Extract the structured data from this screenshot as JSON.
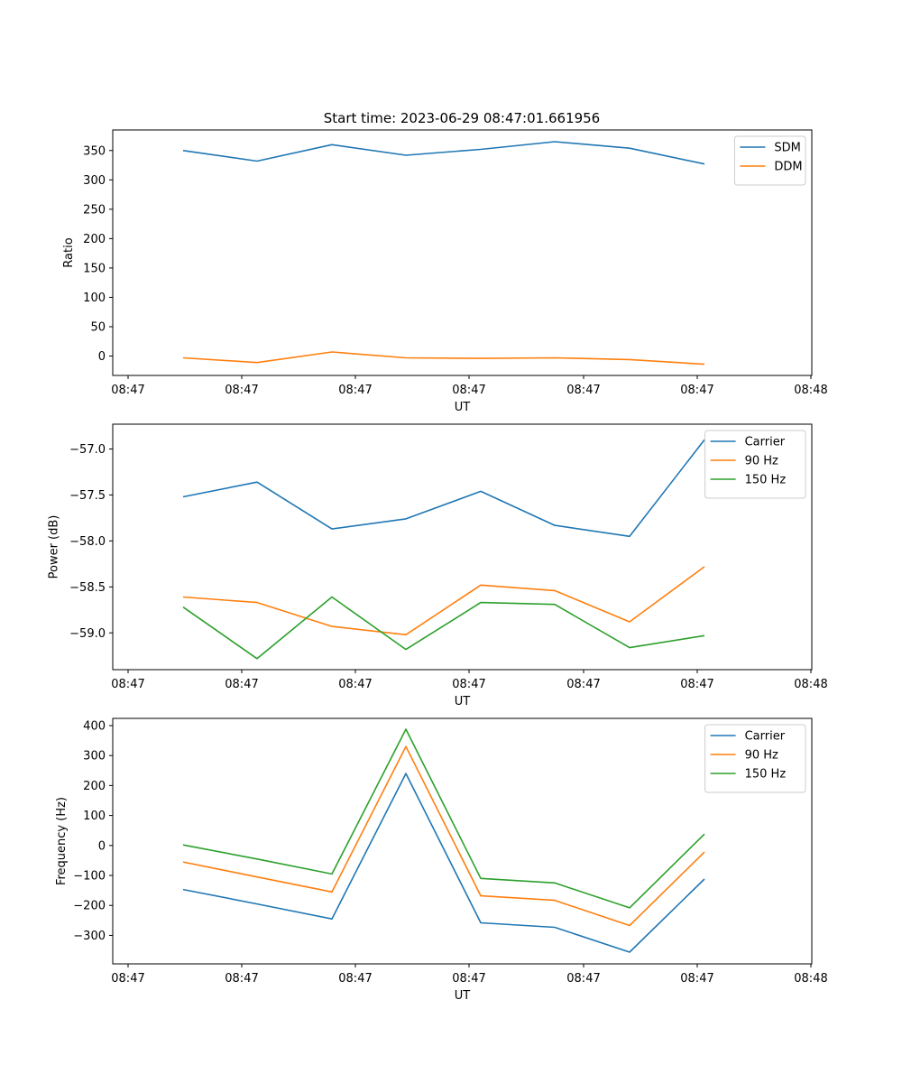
{
  "colors": {
    "blue": "#1f77b4",
    "orange": "#ff7f0e",
    "green": "#2ca02c"
  },
  "chart_data": [
    {
      "type": "line",
      "title": "Start time: 2023-06-29 08:47:01.661956",
      "xlabel": "UT",
      "ylabel": "Ratio",
      "x_tick_labels": [
        "08:47",
        "08:47",
        "08:47",
        "08:47",
        "08:47",
        "08:47",
        "08:48"
      ],
      "y_ticks": [
        0,
        50,
        100,
        150,
        200,
        250,
        300,
        350
      ],
      "y_tick_labels": [
        "0",
        "50",
        "100",
        "150",
        "200",
        "250",
        "300",
        "350"
      ],
      "ylim": [
        -33,
        385
      ],
      "grid": false,
      "legend_position": "top-right",
      "series": [
        {
          "name": "SDM",
          "color": "#1f77b4",
          "values": [
            350,
            332,
            360,
            342,
            352,
            365,
            354,
            327
          ]
        },
        {
          "name": "DDM",
          "color": "#ff7f0e",
          "values": [
            -3,
            -11,
            7,
            -3,
            -4,
            -3,
            -6,
            -14
          ]
        }
      ]
    },
    {
      "type": "line",
      "title": "",
      "xlabel": "UT",
      "ylabel": "Power (dB)",
      "x_tick_labels": [
        "08:47",
        "08:47",
        "08:47",
        "08:47",
        "08:47",
        "08:47",
        "08:48"
      ],
      "y_ticks": [
        -59.0,
        -58.5,
        -58.0,
        -57.5,
        -57.0
      ],
      "y_tick_labels": [
        "−59.0",
        "−58.5",
        "−58.0",
        "−57.5",
        "−57.0"
      ],
      "ylim": [
        -59.4,
        -56.73
      ],
      "grid": false,
      "legend_position": "top-right",
      "series": [
        {
          "name": "Carrier",
          "color": "#1f77b4",
          "values": [
            -57.52,
            -57.36,
            -57.87,
            -57.76,
            -57.46,
            -57.83,
            -57.95,
            -56.9
          ]
        },
        {
          "name": "90 Hz",
          "color": "#ff7f0e",
          "values": [
            -58.61,
            -58.67,
            -58.93,
            -59.02,
            -58.48,
            -58.54,
            -58.88,
            -58.28
          ]
        },
        {
          "name": "150 Hz",
          "color": "#2ca02c",
          "values": [
            -58.72,
            -59.28,
            -58.61,
            -59.18,
            -58.67,
            -58.69,
            -59.16,
            -59.03
          ]
        }
      ]
    },
    {
      "type": "line",
      "title": "",
      "xlabel": "UT",
      "ylabel": "Frequency (Hz)",
      "x_tick_labels": [
        "08:47",
        "08:47",
        "08:47",
        "08:47",
        "08:47",
        "08:47",
        "08:48"
      ],
      "y_ticks": [
        -300,
        -200,
        -100,
        0,
        100,
        200,
        300,
        400
      ],
      "y_tick_labels": [
        "−300",
        "−200",
        "−100",
        "0",
        "100",
        "200",
        "300",
        "400"
      ],
      "ylim": [
        -395,
        424
      ],
      "grid": false,
      "legend_position": "top-right",
      "series": [
        {
          "name": "Carrier",
          "color": "#1f77b4",
          "values": [
            -147,
            -195,
            -245,
            240,
            -258,
            -273,
            -356,
            -112
          ]
        },
        {
          "name": "90 Hz",
          "color": "#ff7f0e",
          "values": [
            -55,
            -105,
            -155,
            330,
            -168,
            -183,
            -267,
            -22
          ]
        },
        {
          "name": "150 Hz",
          "color": "#2ca02c",
          "values": [
            2,
            -45,
            -95,
            388,
            -110,
            -125,
            -208,
            38
          ]
        }
      ]
    }
  ]
}
